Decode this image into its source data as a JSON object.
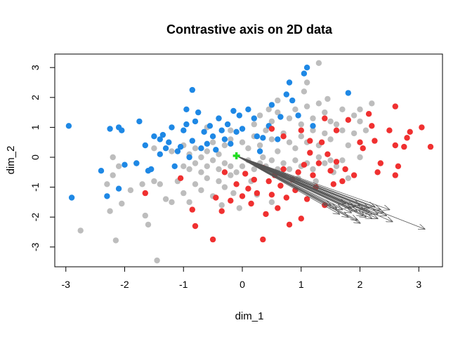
{
  "chart_data": {
    "type": "scatter",
    "title": "Contrastive axis on 2D data",
    "xlabel": "dim_1",
    "ylabel": "dim_2",
    "xlim": [
      -3.2,
      3.4
    ],
    "ylim": [
      -3.6,
      3.4
    ],
    "xticks": [
      -3,
      -2,
      -1,
      0,
      1,
      2,
      3
    ],
    "yticks": [
      -3,
      -2,
      -1,
      0,
      1,
      2,
      3
    ],
    "xtick_labels": [
      "-3",
      "-2",
      "-1",
      "0",
      "1",
      "2",
      "3"
    ],
    "ytick_labels": [
      "-3",
      "-2",
      "-1",
      "0",
      "1",
      "2",
      "3"
    ],
    "colors": {
      "blue": "#1e88e5",
      "gray": "#bdbdbd",
      "red": "#f03030",
      "green": "#22dd22",
      "arrow": "#555555"
    },
    "series": [
      {
        "name": "gray",
        "color": "#bdbdbd",
        "points": [
          [
            -2.75,
            -2.45
          ],
          [
            -2.15,
            -2.78
          ],
          [
            -2.25,
            -1.8
          ],
          [
            -2.05,
            -1.55
          ],
          [
            -1.45,
            -3.45
          ],
          [
            -1.6,
            -2.25
          ],
          [
            -1.65,
            -1.95
          ],
          [
            -2.3,
            -0.9
          ],
          [
            -2.2,
            -0.6
          ],
          [
            -2.1,
            -0.3
          ],
          [
            -2.2,
            0.0
          ],
          [
            -1.9,
            -1.1
          ],
          [
            -1.7,
            -0.9
          ],
          [
            -1.5,
            -0.8
          ],
          [
            -1.4,
            -0.9
          ],
          [
            -1.3,
            -1.4
          ],
          [
            -1.2,
            -1.5
          ],
          [
            -1.1,
            -0.8
          ],
          [
            -1.0,
            -1.2
          ],
          [
            -0.9,
            -1.5
          ],
          [
            -0.8,
            -0.9
          ],
          [
            -0.7,
            -1.1
          ],
          [
            -0.6,
            -0.7
          ],
          [
            -0.5,
            -1.3
          ],
          [
            -0.4,
            -0.8
          ],
          [
            -0.3,
            -1.0
          ],
          [
            -0.2,
            -0.6
          ],
          [
            -1.0,
            -0.3
          ],
          [
            -0.9,
            -0.4
          ],
          [
            -0.8,
            -0.2
          ],
          [
            -0.7,
            -0.5
          ],
          [
            -0.6,
            -0.3
          ],
          [
            -0.5,
            -0.1
          ],
          [
            -0.4,
            -0.4
          ],
          [
            -0.3,
            -0.2
          ],
          [
            -0.2,
            -0.3
          ],
          [
            -0.1,
            -0.5
          ],
          [
            0.0,
            -0.3
          ],
          [
            0.1,
            -0.1
          ],
          [
            0.2,
            -0.4
          ],
          [
            0.3,
            -0.2
          ],
          [
            0.4,
            -0.3
          ],
          [
            0.5,
            -0.1
          ],
          [
            0.6,
            -0.4
          ],
          [
            0.7,
            -0.2
          ],
          [
            0.8,
            -0.4
          ],
          [
            0.9,
            -0.1
          ],
          [
            1.0,
            -0.3
          ],
          [
            1.1,
            -0.2
          ],
          [
            1.2,
            -0.4
          ],
          [
            1.3,
            0.0
          ],
          [
            1.4,
            -0.2
          ],
          [
            1.5,
            -0.1
          ],
          [
            1.6,
            -0.3
          ],
          [
            1.7,
            -0.1
          ],
          [
            -1.2,
            0.2
          ],
          [
            -1.0,
            0.4
          ],
          [
            -0.9,
            0.1
          ],
          [
            -0.8,
            0.3
          ],
          [
            -0.7,
            0.0
          ],
          [
            -0.6,
            0.2
          ],
          [
            -0.5,
            0.5
          ],
          [
            -0.4,
            0.1
          ],
          [
            -0.3,
            0.4
          ],
          [
            -0.2,
            0.6
          ],
          [
            0.0,
            0.5
          ],
          [
            0.1,
            0.3
          ],
          [
            0.2,
            0.7
          ],
          [
            0.3,
            0.4
          ],
          [
            0.4,
            0.9
          ],
          [
            0.5,
            0.6
          ],
          [
            0.6,
            0.2
          ],
          [
            0.7,
            0.8
          ],
          [
            0.8,
            0.5
          ],
          [
            0.9,
            0.3
          ],
          [
            1.0,
            0.7
          ],
          [
            1.1,
            0.5
          ],
          [
            1.2,
            0.9
          ],
          [
            1.3,
            0.4
          ],
          [
            1.4,
            0.8
          ],
          [
            1.5,
            0.6
          ],
          [
            1.6,
            1.1
          ],
          [
            1.7,
            0.9
          ],
          [
            1.8,
            0.4
          ],
          [
            1.9,
            0.8
          ],
          [
            2.0,
            1.2
          ],
          [
            2.1,
            0.9
          ],
          [
            0.2,
            1.1
          ],
          [
            0.3,
            1.4
          ],
          [
            0.5,
            1.2
          ],
          [
            0.6,
            1.5
          ],
          [
            0.8,
            1.3
          ],
          [
            0.9,
            1.6
          ],
          [
            1.0,
            1.1
          ],
          [
            1.1,
            1.7
          ],
          [
            1.2,
            1.3
          ],
          [
            1.3,
            1.8
          ],
          [
            1.4,
            1.5
          ],
          [
            1.5,
            1.2
          ],
          [
            1.7,
            1.6
          ],
          [
            1.9,
            1.4
          ],
          [
            2.0,
            1.6
          ],
          [
            2.2,
            1.8
          ],
          [
            1.1,
            2.5
          ],
          [
            1.3,
            3.15
          ],
          [
            1.45,
            1.95
          ],
          [
            0.6,
            1.9
          ],
          [
            1.05,
            2.2
          ],
          [
            0.45,
            1.6
          ],
          [
            -0.6,
            1.0
          ],
          [
            -0.4,
            1.3
          ],
          [
            -0.2,
            0.9
          ],
          [
            0.35,
            0.0
          ],
          [
            0.7,
            -0.6
          ],
          [
            0.95,
            -0.7
          ],
          [
            1.25,
            -0.8
          ],
          [
            1.55,
            -0.5
          ],
          [
            1.8,
            -0.7
          ],
          [
            0.15,
            -0.8
          ],
          [
            -0.35,
            -1.6
          ],
          [
            -0.05,
            -1.7
          ],
          [
            0.5,
            -1.5
          ],
          [
            0.25,
            -1.25
          ],
          [
            -0.15,
            -1.2
          ],
          [
            -1.5,
            0.3
          ],
          [
            -1.8,
            -0.2
          ],
          [
            2.0,
            0.0
          ]
        ]
      },
      {
        "name": "blue",
        "color": "#1e88e5",
        "points": [
          [
            -2.95,
            1.05
          ],
          [
            -2.9,
            -1.35
          ],
          [
            -2.4,
            -0.45
          ],
          [
            -2.3,
            -1.3
          ],
          [
            -2.1,
            -1.05
          ],
          [
            -2.25,
            0.95
          ],
          [
            -2.1,
            1.0
          ],
          [
            -2.05,
            0.9
          ],
          [
            -2.0,
            -0.25
          ],
          [
            -1.8,
            -0.2
          ],
          [
            -1.75,
            1.2
          ],
          [
            -1.65,
            0.4
          ],
          [
            -1.55,
            -0.4
          ],
          [
            -1.6,
            -0.45
          ],
          [
            -1.5,
            0.7
          ],
          [
            -1.4,
            0.6
          ],
          [
            -1.35,
            0.75
          ],
          [
            -1.3,
            0.3
          ],
          [
            -1.25,
            0.5
          ],
          [
            -1.2,
            1.0
          ],
          [
            -1.15,
            -0.3
          ],
          [
            -1.1,
            0.2
          ],
          [
            -1.05,
            0.35
          ],
          [
            -1.0,
            0.9
          ],
          [
            -0.95,
            1.1
          ],
          [
            -0.9,
            0.0
          ],
          [
            -0.85,
            0.55
          ],
          [
            -0.8,
            1.2
          ],
          [
            -0.75,
            1.5
          ],
          [
            -0.7,
            0.3
          ],
          [
            -0.65,
            0.85
          ],
          [
            -0.6,
            0.45
          ],
          [
            -0.55,
            1.05
          ],
          [
            -0.5,
            0.7
          ],
          [
            -0.45,
            0.25
          ],
          [
            -0.4,
            1.3
          ],
          [
            -0.35,
            0.9
          ],
          [
            -0.3,
            0.6
          ],
          [
            -0.25,
            1.1
          ],
          [
            -0.2,
            0.45
          ],
          [
            -0.15,
            1.55
          ],
          [
            -0.1,
            0.85
          ],
          [
            -0.05,
            1.4
          ],
          [
            0.0,
            0.95
          ],
          [
            0.1,
            1.6
          ],
          [
            0.2,
            1.3
          ],
          [
            0.3,
            0.2
          ],
          [
            0.35,
            0.65
          ],
          [
            0.45,
            1.05
          ],
          [
            0.5,
            1.75
          ],
          [
            0.6,
            0.6
          ],
          [
            0.65,
            1.35
          ],
          [
            0.75,
            2.1
          ],
          [
            0.8,
            2.5
          ],
          [
            0.85,
            1.9
          ],
          [
            0.95,
            1.4
          ],
          [
            1.05,
            2.8
          ],
          [
            1.1,
            3.0
          ],
          [
            1.2,
            1.05
          ],
          [
            1.8,
            2.15
          ],
          [
            -0.85,
            2.25
          ],
          [
            -0.95,
            1.6
          ],
          [
            -1.4,
            0.1
          ],
          [
            0.25,
            0.7
          ]
        ]
      },
      {
        "name": "red",
        "color": "#f03030",
        "points": [
          [
            -1.65,
            -1.2
          ],
          [
            -1.05,
            -0.7
          ],
          [
            -0.85,
            -1.75
          ],
          [
            -0.8,
            -2.3
          ],
          [
            -0.5,
            -2.75
          ],
          [
            -0.45,
            -1.35
          ],
          [
            -0.35,
            -1.8
          ],
          [
            -0.3,
            -0.5
          ],
          [
            -0.2,
            -1.45
          ],
          [
            -0.1,
            -0.9
          ],
          [
            0.0,
            -1.3
          ],
          [
            0.05,
            -0.55
          ],
          [
            0.1,
            -1.05
          ],
          [
            0.15,
            -1.55
          ],
          [
            0.2,
            -0.75
          ],
          [
            0.25,
            -1.2
          ],
          [
            0.35,
            -0.35
          ],
          [
            0.35,
            -2.75
          ],
          [
            0.4,
            -1.9
          ],
          [
            0.45,
            -0.8
          ],
          [
            0.5,
            -1.25
          ],
          [
            0.55,
            -0.6
          ],
          [
            0.6,
            -1.7
          ],
          [
            0.65,
            -0.95
          ],
          [
            0.7,
            -0.4
          ],
          [
            0.75,
            -1.35
          ],
          [
            0.8,
            -2.25
          ],
          [
            0.85,
            -0.75
          ],
          [
            0.9,
            -1.1
          ],
          [
            0.95,
            -0.5
          ],
          [
            1.0,
            -2.05
          ],
          [
            1.05,
            -0.25
          ],
          [
            1.1,
            -1.4
          ],
          [
            1.15,
            0.15
          ],
          [
            1.2,
            -0.6
          ],
          [
            1.25,
            -1.0
          ],
          [
            1.3,
            -0.2
          ],
          [
            1.35,
            0.5
          ],
          [
            1.4,
            -1.6
          ],
          [
            1.45,
            0.1
          ],
          [
            1.5,
            -0.45
          ],
          [
            1.55,
            -0.9
          ],
          [
            1.6,
            -0.15
          ],
          [
            1.7,
            -0.8
          ],
          [
            1.75,
            -0.4
          ],
          [
            1.8,
            1.25
          ],
          [
            1.9,
            -0.6
          ],
          [
            2.0,
            0.5
          ],
          [
            2.05,
            0.3
          ],
          [
            2.15,
            1.45
          ],
          [
            2.2,
            1.05
          ],
          [
            2.25,
            0.55
          ],
          [
            2.3,
            -0.5
          ],
          [
            2.35,
            -0.2
          ],
          [
            2.5,
            0.9
          ],
          [
            2.6,
            1.7
          ],
          [
            2.6,
            0.4
          ],
          [
            2.65,
            -0.3
          ],
          [
            2.6,
            -0.6
          ],
          [
            2.75,
            0.35
          ],
          [
            2.8,
            0.65
          ],
          [
            2.85,
            0.85
          ],
          [
            3.05,
            1.0
          ],
          [
            3.2,
            0.35
          ],
          [
            0.5,
            0.95
          ],
          [
            0.7,
            0.7
          ],
          [
            1.0,
            0.9
          ],
          [
            1.15,
            0.55
          ],
          [
            1.6,
            0.9
          ],
          [
            1.4,
            1.3
          ]
        ]
      }
    ],
    "origin": [
      -0.1,
      0.05
    ],
    "arrow_tips": [
      [
        1.95,
        -2.1
      ],
      [
        2.05,
        -1.95
      ],
      [
        2.1,
        -1.8
      ],
      [
        2.15,
        -1.7
      ],
      [
        2.25,
        -1.65
      ],
      [
        2.2,
        -1.9
      ],
      [
        2.3,
        -2.05
      ],
      [
        2.0,
        -2.2
      ],
      [
        1.8,
        -2.0
      ],
      [
        1.85,
        -1.85
      ],
      [
        1.7,
        -1.75
      ],
      [
        1.6,
        -1.7
      ],
      [
        1.5,
        -1.6
      ],
      [
        2.4,
        -1.85
      ],
      [
        2.35,
        -1.75
      ],
      [
        2.45,
        -1.95
      ],
      [
        2.2,
        -2.05
      ],
      [
        2.05,
        -1.75
      ],
      [
        1.9,
        -1.65
      ],
      [
        1.75,
        -1.55
      ],
      [
        2.1,
        -2.0
      ],
      [
        1.95,
        -1.8
      ],
      [
        3.1,
        -2.4
      ],
      [
        2.55,
        -2.15
      ],
      [
        2.0,
        -1.6
      ],
      [
        1.65,
        -1.9
      ],
      [
        2.3,
        -1.9
      ],
      [
        1.85,
        -1.7
      ],
      [
        2.15,
        -1.85
      ],
      [
        2.5,
        -1.75
      ]
    ]
  }
}
